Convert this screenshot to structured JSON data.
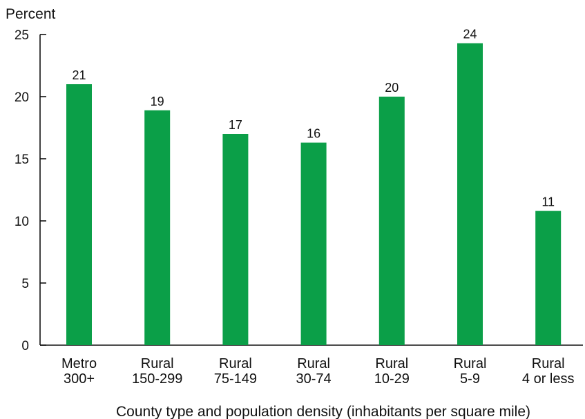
{
  "chart_data": {
    "type": "bar",
    "title": "",
    "ylabel": "Percent",
    "xlabel": "County type and population density (inhabitants per square mile)",
    "categories": [
      [
        "Metro",
        "300+"
      ],
      [
        "Rural",
        "150-299"
      ],
      [
        "Rural",
        "75-149"
      ],
      [
        "Rural",
        "30-74"
      ],
      [
        "Rural",
        "10-29"
      ],
      [
        "Rural",
        "5-9"
      ],
      [
        "Rural",
        "4 or less"
      ]
    ],
    "values": [
      21,
      18.9,
      17,
      16.3,
      20,
      24.3,
      10.8
    ],
    "data_labels": [
      "21",
      "19",
      "17",
      "16",
      "20",
      "24",
      "11"
    ],
    "ylim": [
      0,
      25
    ],
    "yticks": [
      0,
      5,
      10,
      15,
      20,
      25
    ],
    "grid": false,
    "legend": "none",
    "bar_color": "#0b9f48",
    "axis_color": "#111111"
  }
}
